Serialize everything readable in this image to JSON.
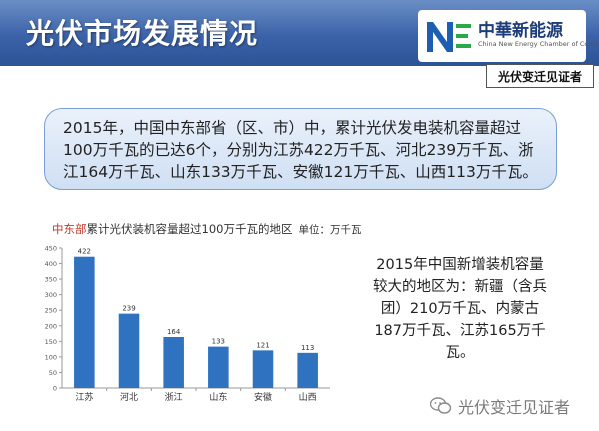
{
  "header": {
    "title": "光伏市场发展情况",
    "logo_cn": "中華新能源",
    "logo_en": "China New Energy Chamber of Commerce"
  },
  "tag": "光伏变迁见证者",
  "summary": "2015年，中国中东部省（区、市）中，累计光伏发电装机容量超过100万千瓦的已达6个，分别为江苏422万千瓦、河北239万千瓦、浙江164万千瓦、山东133万千瓦、安徽121万千瓦、山西113万千瓦。",
  "chart_header": {
    "highlight": "中东部",
    "rest": "累计光伏装机容量超过100万千瓦的地区",
    "unit": "单位：万千瓦"
  },
  "side_note": "2015年中国新增装机容量较大的地区为：新疆（含兵团）210万千瓦、内蒙古187万千瓦、江苏165万千瓦。",
  "watermark": "光伏变迁见证者",
  "colors": {
    "bar": "#2f72c0",
    "header": "#3b62a8",
    "highlight": "#c0392b"
  },
  "chart_data": {
    "type": "bar",
    "title": "中东部累计光伏装机容量超过100万千瓦的地区",
    "ylabel": "单位：万千瓦",
    "categories": [
      "江苏",
      "河北",
      "浙江",
      "山东",
      "安徽",
      "山西"
    ],
    "values": [
      422,
      239,
      164,
      133,
      121,
      113
    ],
    "ylim": [
      0,
      450
    ],
    "yticks": [
      0,
      50,
      100,
      150,
      200,
      250,
      300,
      350,
      400,
      450
    ],
    "data_labels": true,
    "grid": false,
    "legend": "none"
  }
}
